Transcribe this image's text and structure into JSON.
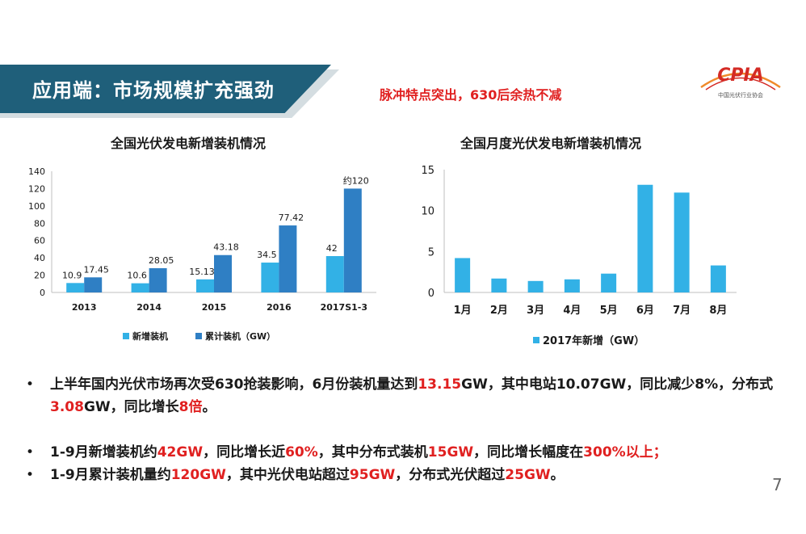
{
  "header": {
    "title": "应用端：市场规模扩充强劲",
    "slogan": "脉冲特点突出，630后余热不减"
  },
  "logo": {
    "name": "CPIA",
    "subtitle": "中国光伏行业协会",
    "colors": {
      "red": "#d42b25",
      "orange": "#f08a2a"
    }
  },
  "chart_data": [
    {
      "type": "bar",
      "title": "全国光伏发电新增装机情况",
      "categories": [
        "2013",
        "2014",
        "2015",
        "2016",
        "2017S1-3"
      ],
      "series": [
        {
          "name": "新增装机",
          "values": [
            10.9,
            10.6,
            15.13,
            34.5,
            42
          ],
          "color": "#32b1e6"
        },
        {
          "name": "累计装机（GW）",
          "values": [
            17.45,
            28.05,
            43.18,
            77.42,
            120
          ],
          "color": "#2f7fc4"
        }
      ],
      "data_labels": [
        [
          "10.9",
          "10.6",
          "15.13",
          "34.5",
          "42"
        ],
        [
          "17.45",
          "28.05",
          "43.18",
          "77.42",
          "约120"
        ]
      ],
      "xlabel": "",
      "ylabel": "",
      "ylim": [
        0,
        140
      ],
      "yticks": [
        0,
        20,
        40,
        60,
        80,
        100,
        120,
        140
      ],
      "grid": false,
      "legend_position": "bottom"
    },
    {
      "type": "bar",
      "title": "全国月度光伏发电新增装机情况",
      "categories": [
        "1月",
        "2月",
        "3月",
        "4月",
        "5月",
        "6月",
        "7月",
        "8月"
      ],
      "series": [
        {
          "name": "2017年新增（GW）",
          "values": [
            4.2,
            1.7,
            1.4,
            1.6,
            2.3,
            13.15,
            12.2,
            3.3
          ],
          "color": "#32b1e6"
        }
      ],
      "xlabel": "",
      "ylabel": "",
      "ylim": [
        0,
        15
      ],
      "yticks": [
        0,
        5,
        10,
        15
      ],
      "grid": false,
      "legend_position": "bottom"
    }
  ],
  "bullets": [
    [
      {
        "t": "上半年国内光伏市场再次受630抢装影响，6月份装机量达到",
        "hl": false
      },
      {
        "t": "13.15",
        "hl": true
      },
      {
        "t": "GW，其中电站10.07GW，同比减少8%，分布式",
        "hl": false
      },
      {
        "t": "3.08",
        "hl": true
      },
      {
        "t": "GW，同比增长",
        "hl": false
      },
      {
        "t": "8倍",
        "hl": true
      },
      {
        "t": "。",
        "hl": false
      }
    ],
    [
      {
        "t": "1-9月新增装机约",
        "hl": false
      },
      {
        "t": "42GW",
        "hl": true
      },
      {
        "t": "，同比增长近",
        "hl": false
      },
      {
        "t": "60%",
        "hl": true
      },
      {
        "t": "，其中分布式装机",
        "hl": false
      },
      {
        "t": "15GW",
        "hl": true
      },
      {
        "t": "，同比增长幅度在",
        "hl": false
      },
      {
        "t": "300%以上；",
        "hl": true
      }
    ],
    [
      {
        "t": "1-9月累计装机量约",
        "hl": false
      },
      {
        "t": "120GW",
        "hl": true
      },
      {
        "t": "，其中光伏电站超过",
        "hl": false
      },
      {
        "t": "95GW",
        "hl": true
      },
      {
        "t": "，分布式光伏超过",
        "hl": false
      },
      {
        "t": "25GW",
        "hl": true
      },
      {
        "t": "。",
        "hl": false
      }
    ]
  ],
  "page_number": "7"
}
